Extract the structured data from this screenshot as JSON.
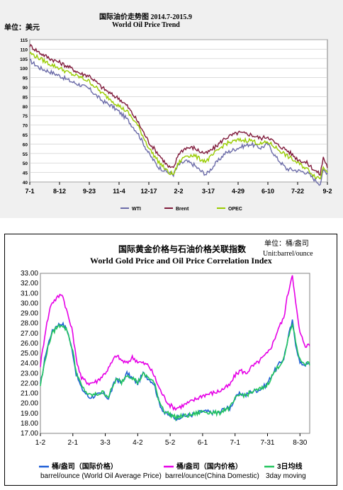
{
  "chart1": {
    "title_cn": "国际油价走势图 2014.7-2015.9",
    "title_en": "World Oil Price Trend",
    "unit": "单位：美元",
    "chart_data": {
      "type": "line",
      "title": "World Oil Price Trend",
      "ylim": [
        40,
        115
      ],
      "yticks": [
        "115",
        "110",
        "105",
        "100",
        "95",
        "90",
        "85",
        "80",
        "75",
        "70",
        "65",
        "60",
        "55",
        "50",
        "45",
        "40"
      ],
      "xtick_labels": [
        "7-1",
        "8-12",
        "9-23",
        "11-4",
        "12-17",
        "2-2",
        "3-17",
        "4-29",
        "6-10",
        "7-22",
        "9-2"
      ],
      "xtick_positions": [
        0,
        29,
        58,
        87,
        116,
        145,
        174,
        203,
        232,
        261,
        290
      ],
      "x_count": 291,
      "series": [
        {
          "name": "WTI",
          "color": "#6b6ba8",
          "keypoints": [
            [
              0,
              104
            ],
            [
              10,
              100
            ],
            [
              20,
              98
            ],
            [
              29,
              96
            ],
            [
              40,
              93
            ],
            [
              50,
              91
            ],
            [
              58,
              89
            ],
            [
              70,
              83
            ],
            [
              80,
              80
            ],
            [
              87,
              77
            ],
            [
              95,
              73
            ],
            [
              105,
              66
            ],
            [
              116,
              55
            ],
            [
              125,
              48
            ],
            [
              135,
              45
            ],
            [
              140,
              44
            ],
            [
              145,
              49
            ],
            [
              152,
              51
            ],
            [
              160,
              49
            ],
            [
              166,
              46
            ],
            [
              172,
              44
            ],
            [
              180,
              49
            ],
            [
              190,
              55
            ],
            [
              203,
              58
            ],
            [
              215,
              60
            ],
            [
              225,
              58
            ],
            [
              232,
              60
            ],
            [
              240,
              53
            ],
            [
              250,
              47
            ],
            [
              261,
              46
            ],
            [
              270,
              45
            ],
            [
              278,
              41
            ],
            [
              283,
              39
            ],
            [
              286,
              46
            ],
            [
              290,
              45
            ]
          ]
        },
        {
          "name": "Brent",
          "color": "#7f1a3a",
          "keypoints": [
            [
              0,
              112
            ],
            [
              10,
              108
            ],
            [
              20,
              105
            ],
            [
              29,
              103
            ],
            [
              40,
              100
            ],
            [
              50,
              97
            ],
            [
              58,
              96
            ],
            [
              70,
              90
            ],
            [
              80,
              86
            ],
            [
              87,
              84
            ],
            [
              95,
              80
            ],
            [
              105,
              72
            ],
            [
              116,
              61
            ],
            [
              125,
              55
            ],
            [
              135,
              48
            ],
            [
              140,
              47
            ],
            [
              145,
              55
            ],
            [
              152,
              58
            ],
            [
              160,
              58
            ],
            [
              166,
              56
            ],
            [
              172,
              55
            ],
            [
              180,
              58
            ],
            [
              190,
              63
            ],
            [
              203,
              66
            ],
            [
              215,
              65
            ],
            [
              225,
              63
            ],
            [
              232,
              64
            ],
            [
              240,
              60
            ],
            [
              250,
              57
            ],
            [
              261,
              52
            ],
            [
              270,
              50
            ],
            [
              278,
              46
            ],
            [
              283,
              44
            ],
            [
              286,
              53
            ],
            [
              290,
              48
            ]
          ]
        },
        {
          "name": "OPEC",
          "color": "#99cc00",
          "keypoints": [
            [
              0,
              108
            ],
            [
              10,
              105
            ],
            [
              20,
              102
            ],
            [
              29,
              100
            ],
            [
              40,
              97
            ],
            [
              50,
              95
            ],
            [
              58,
              93
            ],
            [
              70,
              87
            ],
            [
              80,
              83
            ],
            [
              87,
              80
            ],
            [
              95,
              77
            ],
            [
              105,
              70
            ],
            [
              116,
              58
            ],
            [
              125,
              51
            ],
            [
              135,
              45
            ],
            [
              140,
              44
            ],
            [
              145,
              50
            ],
            [
              152,
              54
            ],
            [
              160,
              54
            ],
            [
              166,
              52
            ],
            [
              172,
              51
            ],
            [
              180,
              55
            ],
            [
              190,
              60
            ],
            [
              203,
              62
            ],
            [
              215,
              62
            ],
            [
              225,
              60
            ],
            [
              232,
              61
            ],
            [
              240,
              58
            ],
            [
              250,
              54
            ],
            [
              261,
              50
            ],
            [
              270,
              47
            ],
            [
              278,
              43
            ],
            [
              283,
              42
            ],
            [
              286,
              48
            ],
            [
              290,
              46
            ]
          ]
        }
      ]
    }
  },
  "chart2": {
    "title_cn": "国际黄金价格与石油价格关联指数",
    "title_en": "World Gold Price and Oil Price Correlation Index",
    "unit_cn": "单位：桶/盎司",
    "unit_en": "Unit:barrel/ounce",
    "chart_data": {
      "type": "line",
      "title": "World Gold Price and Oil Price Correlation Index",
      "ylim": [
        17,
        33
      ],
      "yticks": [
        "33.00",
        "32.00",
        "31.00",
        "30.00",
        "29.00",
        "28.00",
        "27.00",
        "26.00",
        "25.00",
        "24.00",
        "23.00",
        "22.00",
        "21.00",
        "20.00",
        "19.00",
        "18.00",
        "17.00"
      ],
      "xtick_labels": [
        "1-2",
        "2-1",
        "3-3",
        "4-2",
        "5-2",
        "6-1",
        "7-1",
        "7-31",
        "8-30"
      ],
      "xtick_positions": [
        0,
        30,
        60,
        90,
        120,
        150,
        180,
        210,
        240
      ],
      "x_count": 250,
      "series": [
        {
          "name": "桶/盎司（国际价格）",
          "legend_en": "barrel/ounce (World Oil Average Price)",
          "color": "#1f5fd6",
          "keypoints": [
            [
              0,
              21.8
            ],
            [
              5,
              25
            ],
            [
              10,
              27
            ],
            [
              15,
              27.8
            ],
            [
              20,
              28
            ],
            [
              25,
              27.3
            ],
            [
              30,
              25
            ],
            [
              33,
              23
            ],
            [
              38,
              21.5
            ],
            [
              45,
              20.6
            ],
            [
              52,
              20.8
            ],
            [
              58,
              21
            ],
            [
              63,
              20.5
            ],
            [
              70,
              22.5
            ],
            [
              75,
              22
            ],
            [
              80,
              23
            ],
            [
              85,
              22.5
            ],
            [
              90,
              22
            ],
            [
              95,
              23
            ],
            [
              100,
              22.5
            ],
            [
              105,
              22
            ],
            [
              110,
              20
            ],
            [
              115,
              19
            ],
            [
              120,
              18.8
            ],
            [
              125,
              18.5
            ],
            [
              130,
              18.7
            ],
            [
              138,
              18.8
            ],
            [
              145,
              19
            ],
            [
              150,
              19.2
            ],
            [
              158,
              19.1
            ],
            [
              165,
              19
            ],
            [
              170,
              19.5
            ],
            [
              175,
              19.5
            ],
            [
              180,
              20.5
            ],
            [
              185,
              21
            ],
            [
              190,
              20.8
            ],
            [
              195,
              21.2
            ],
            [
              200,
              21.3
            ],
            [
              205,
              21.5
            ],
            [
              210,
              22
            ],
            [
              215,
              23
            ],
            [
              220,
              23.8
            ],
            [
              225,
              24.5
            ],
            [
              230,
              27
            ],
            [
              233,
              28.2
            ],
            [
              236,
              26
            ],
            [
              240,
              24
            ],
            [
              245,
              23.9
            ]
          ]
        },
        {
          "name": "桶/盎司（国内价格）",
          "legend_en": "barrel/ounce(China Domestic)",
          "color": "#e600e6",
          "keypoints": [
            [
              0,
              23.8
            ],
            [
              5,
              27.5
            ],
            [
              10,
              30
            ],
            [
              15,
              30.5
            ],
            [
              20,
              31
            ],
            [
              25,
              29
            ],
            [
              30,
              27
            ],
            [
              33,
              24.5
            ],
            [
              38,
              22.5
            ],
            [
              45,
              22
            ],
            [
              52,
              22.2
            ],
            [
              58,
              22.8
            ],
            [
              63,
              23.5
            ],
            [
              70,
              24.8
            ],
            [
              75,
              24.3
            ],
            [
              80,
              24
            ],
            [
              85,
              24.6
            ],
            [
              90,
              24.2
            ],
            [
              95,
              24
            ],
            [
              100,
              23.8
            ],
            [
              105,
              22.8
            ],
            [
              110,
              21.5
            ],
            [
              115,
              20.5
            ],
            [
              120,
              19.8
            ],
            [
              125,
              19.5
            ],
            [
              130,
              19.7
            ],
            [
              138,
              20.1
            ],
            [
              145,
              20.5
            ],
            [
              150,
              20.8
            ],
            [
              158,
              21
            ],
            [
              165,
              21.2
            ],
            [
              170,
              21.5
            ],
            [
              175,
              21.8
            ],
            [
              180,
              22.8
            ],
            [
              185,
              23.3
            ],
            [
              190,
              23
            ],
            [
              195,
              23.6
            ],
            [
              200,
              24
            ],
            [
              205,
              24.5
            ],
            [
              210,
              25
            ],
            [
              215,
              26
            ],
            [
              220,
              27.5
            ],
            [
              225,
              28.5
            ],
            [
              228,
              30.5
            ],
            [
              233,
              33
            ],
            [
              236,
              30
            ],
            [
              240,
              27
            ],
            [
              245,
              25.8
            ]
          ]
        },
        {
          "name": "3日均线",
          "legend_en": "3day moving",
          "color": "#22c55e",
          "keypoints": [
            [
              0,
              21.8
            ],
            [
              5,
              24.7
            ],
            [
              10,
              26.8
            ],
            [
              15,
              27.6
            ],
            [
              20,
              27.9
            ],
            [
              25,
              27.2
            ],
            [
              30,
              25.2
            ],
            [
              33,
              23.2
            ],
            [
              38,
              21.7
            ],
            [
              45,
              20.8
            ],
            [
              52,
              20.9
            ],
            [
              58,
              21.1
            ],
            [
              63,
              20.7
            ],
            [
              70,
              22.4
            ],
            [
              75,
              22.1
            ],
            [
              80,
              22.9
            ],
            [
              85,
              22.6
            ],
            [
              90,
              22.1
            ],
            [
              95,
              22.9
            ],
            [
              100,
              22.6
            ],
            [
              105,
              22.1
            ],
            [
              110,
              20.2
            ],
            [
              115,
              19.2
            ],
            [
              120,
              18.9
            ],
            [
              125,
              18.6
            ],
            [
              130,
              18.7
            ],
            [
              138,
              18.8
            ],
            [
              145,
              19
            ],
            [
              150,
              19.2
            ],
            [
              158,
              19.1
            ],
            [
              165,
              19
            ],
            [
              170,
              19.4
            ],
            [
              175,
              19.5
            ],
            [
              180,
              20.4
            ],
            [
              185,
              20.9
            ],
            [
              190,
              20.8
            ],
            [
              195,
              21.1
            ],
            [
              200,
              21.3
            ],
            [
              205,
              21.5
            ],
            [
              210,
              21.9
            ],
            [
              215,
              22.9
            ],
            [
              220,
              23.7
            ],
            [
              225,
              24.4
            ],
            [
              230,
              26.8
            ],
            [
              233,
              28
            ],
            [
              236,
              26.2
            ],
            [
              240,
              24.3
            ],
            [
              245,
              24
            ]
          ]
        }
      ]
    }
  }
}
